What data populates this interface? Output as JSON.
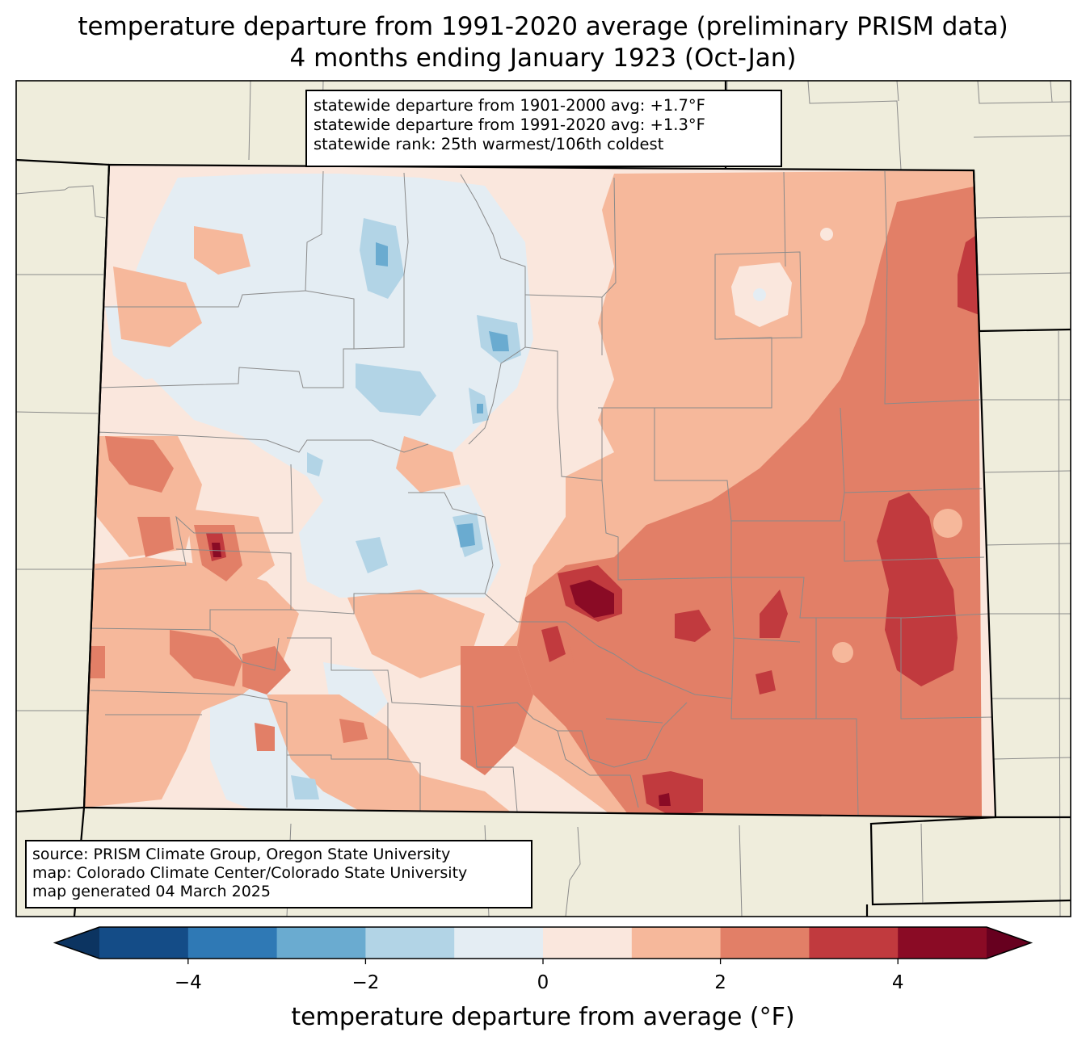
{
  "title": {
    "line1": "temperature departure from 1991-2020 average (preliminary PRISM data)",
    "line2": "4 months ending January 1923 (Oct-Jan)"
  },
  "stats": {
    "line1": "statewide departure from 1901-2000 avg: +1.7°F",
    "line2": "statewide departure from 1991-2020 avg: +1.3°F",
    "line3": "statewide rank: 25th warmest/106th coldest"
  },
  "source": {
    "line1": "source: PRISM Climate Group, Oregon State University",
    "line2": "map: Colorado Climate Center/Colorado State University",
    "line3": "map generated 04 March 2025"
  },
  "colorbar": {
    "label": "temperature departure from average (°F)",
    "ticks": [
      "−4",
      "−2",
      "0",
      "2",
      "4"
    ],
    "tick_values": [
      -4,
      -2,
      0,
      2,
      4
    ],
    "range": [
      -5,
      5
    ],
    "bins": [
      {
        "from": -5,
        "to": -4,
        "color": "#144c87"
      },
      {
        "from": -4,
        "to": -3,
        "color": "#2f79b5"
      },
      {
        "from": -3,
        "to": -2,
        "color": "#6aabd0"
      },
      {
        "from": -2,
        "to": -1,
        "color": "#b2d4e6"
      },
      {
        "from": -1,
        "to": 0,
        "color": "#e4edf3"
      },
      {
        "from": 0,
        "to": 1,
        "color": "#fae7dd"
      },
      {
        "from": 1,
        "to": 2,
        "color": "#f6b89b"
      },
      {
        "from": 2,
        "to": 3,
        "color": "#e27f67"
      },
      {
        "from": 3,
        "to": 4,
        "color": "#c13a3e"
      },
      {
        "from": 4,
        "to": 5,
        "color": "#8a0b25"
      }
    ],
    "under_color": "#0c3461",
    "over_color": "#67001f"
  },
  "colors": {
    "land": "#efeddc",
    "state_border": "#000000",
    "county_border": "#808080"
  }
}
